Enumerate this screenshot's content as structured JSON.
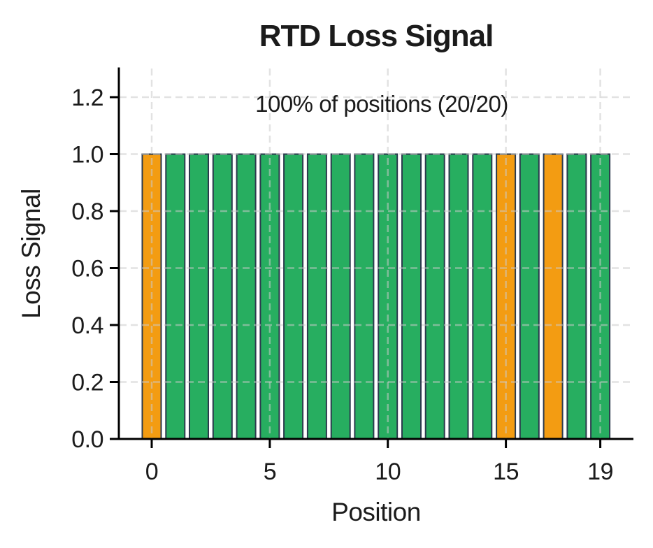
{
  "figure": {
    "title": "RTD Loss Signal",
    "annotation": "100% of positions (20/20)",
    "xlabel": "Position",
    "ylabel": "Loss Signal"
  },
  "chart_data": {
    "type": "bar",
    "title": "RTD Loss Signal",
    "annotation": "100% of positions (20/20)",
    "xlabel": "Position",
    "ylabel": "Loss Signal",
    "x": [
      0,
      1,
      2,
      3,
      4,
      5,
      6,
      7,
      8,
      9,
      10,
      11,
      12,
      13,
      14,
      15,
      16,
      17,
      18,
      19
    ],
    "values": [
      1.0,
      1.0,
      1.0,
      1.0,
      1.0,
      1.0,
      1.0,
      1.0,
      1.0,
      1.0,
      1.0,
      1.0,
      1.0,
      1.0,
      1.0,
      1.0,
      1.0,
      1.0,
      1.0,
      1.0
    ],
    "highlight_indices": [
      0,
      15,
      17
    ],
    "colors": {
      "bar_default": "#27AE60",
      "bar_highlight": "#F39C12",
      "bar_edge": "#2B3A4D",
      "grid": "#DCDCDC",
      "axis": "#000000",
      "text": "#1b1b1b"
    },
    "xticks": [
      0,
      5,
      10,
      15,
      19
    ],
    "ytick_labels": [
      "0.0",
      "0.2",
      "0.4",
      "0.6",
      "0.8",
      "1.0",
      "1.2"
    ],
    "ylim": [
      0,
      1.3
    ],
    "grid": "dashed",
    "legend": "none"
  }
}
